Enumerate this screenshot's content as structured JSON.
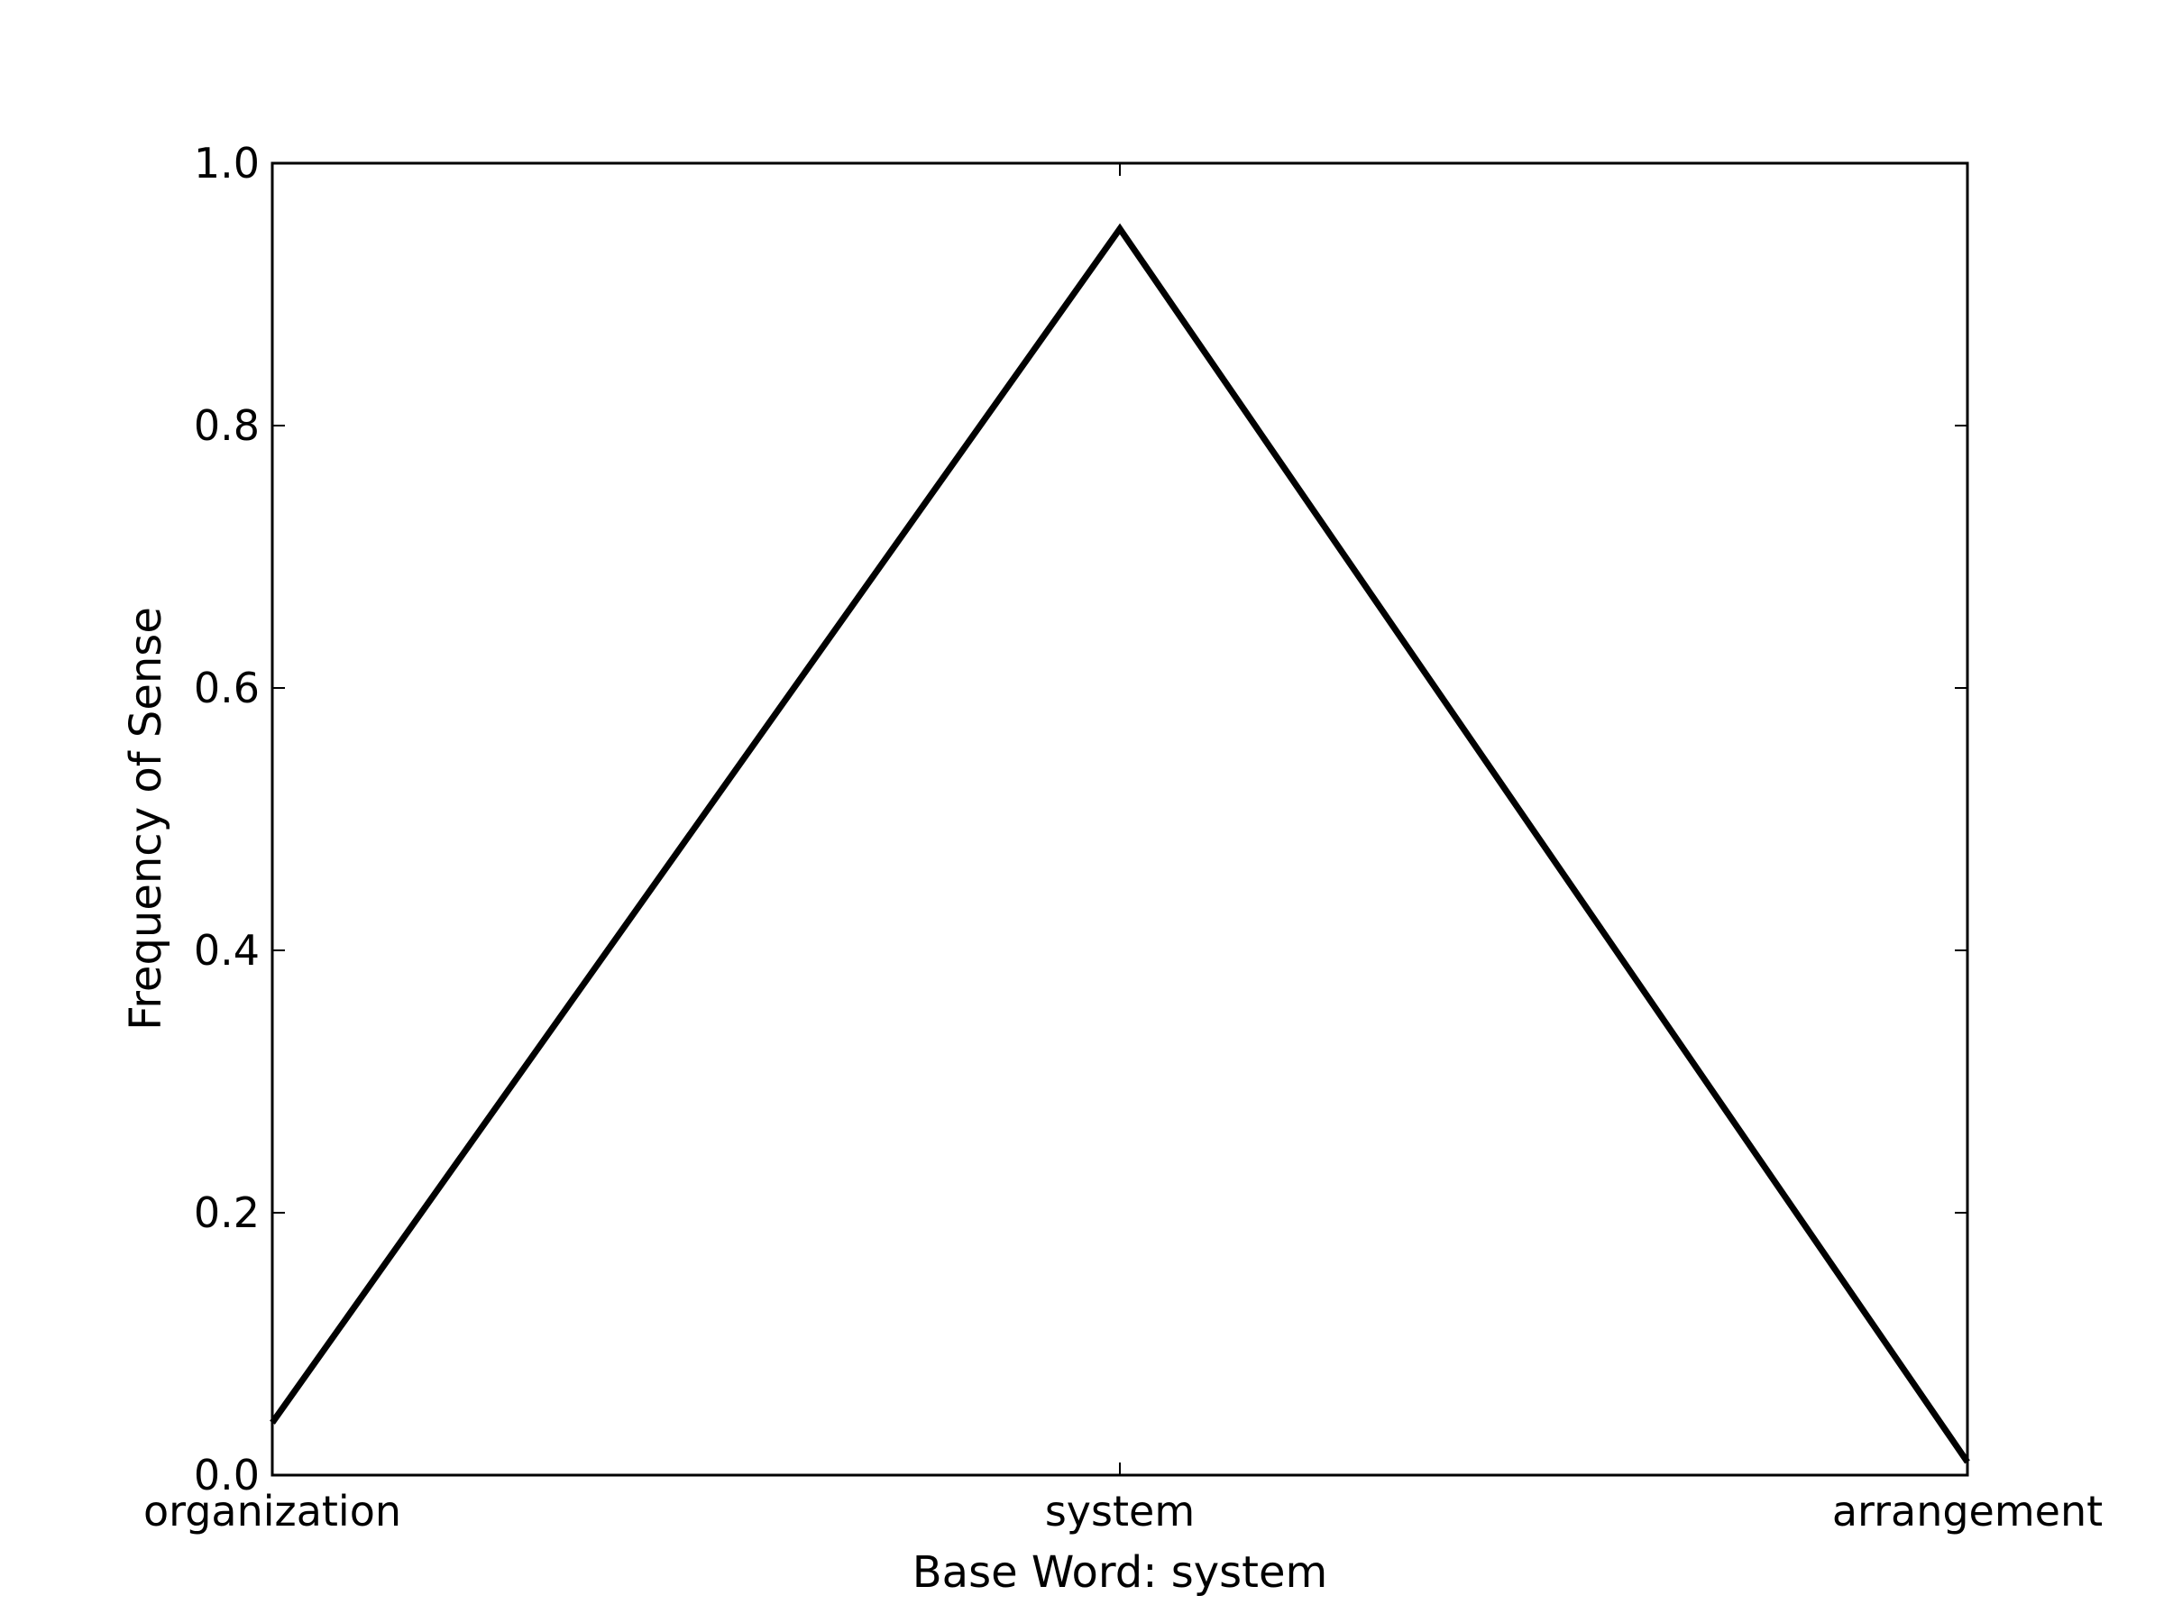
{
  "chart_data": {
    "type": "line",
    "categories": [
      "organization",
      "system",
      "arrangement"
    ],
    "series": [
      {
        "values": [
          0.04,
          0.95,
          0.01
        ]
      }
    ],
    "xlabel": "Base Word: system",
    "ylabel": "Frequency of Sense",
    "ylim": [
      0,
      1
    ],
    "yticks": [
      "0.0",
      "0.2",
      "0.4",
      "0.6",
      "0.8",
      "1.0"
    ],
    "grid": false,
    "line_color": "#000000"
  }
}
